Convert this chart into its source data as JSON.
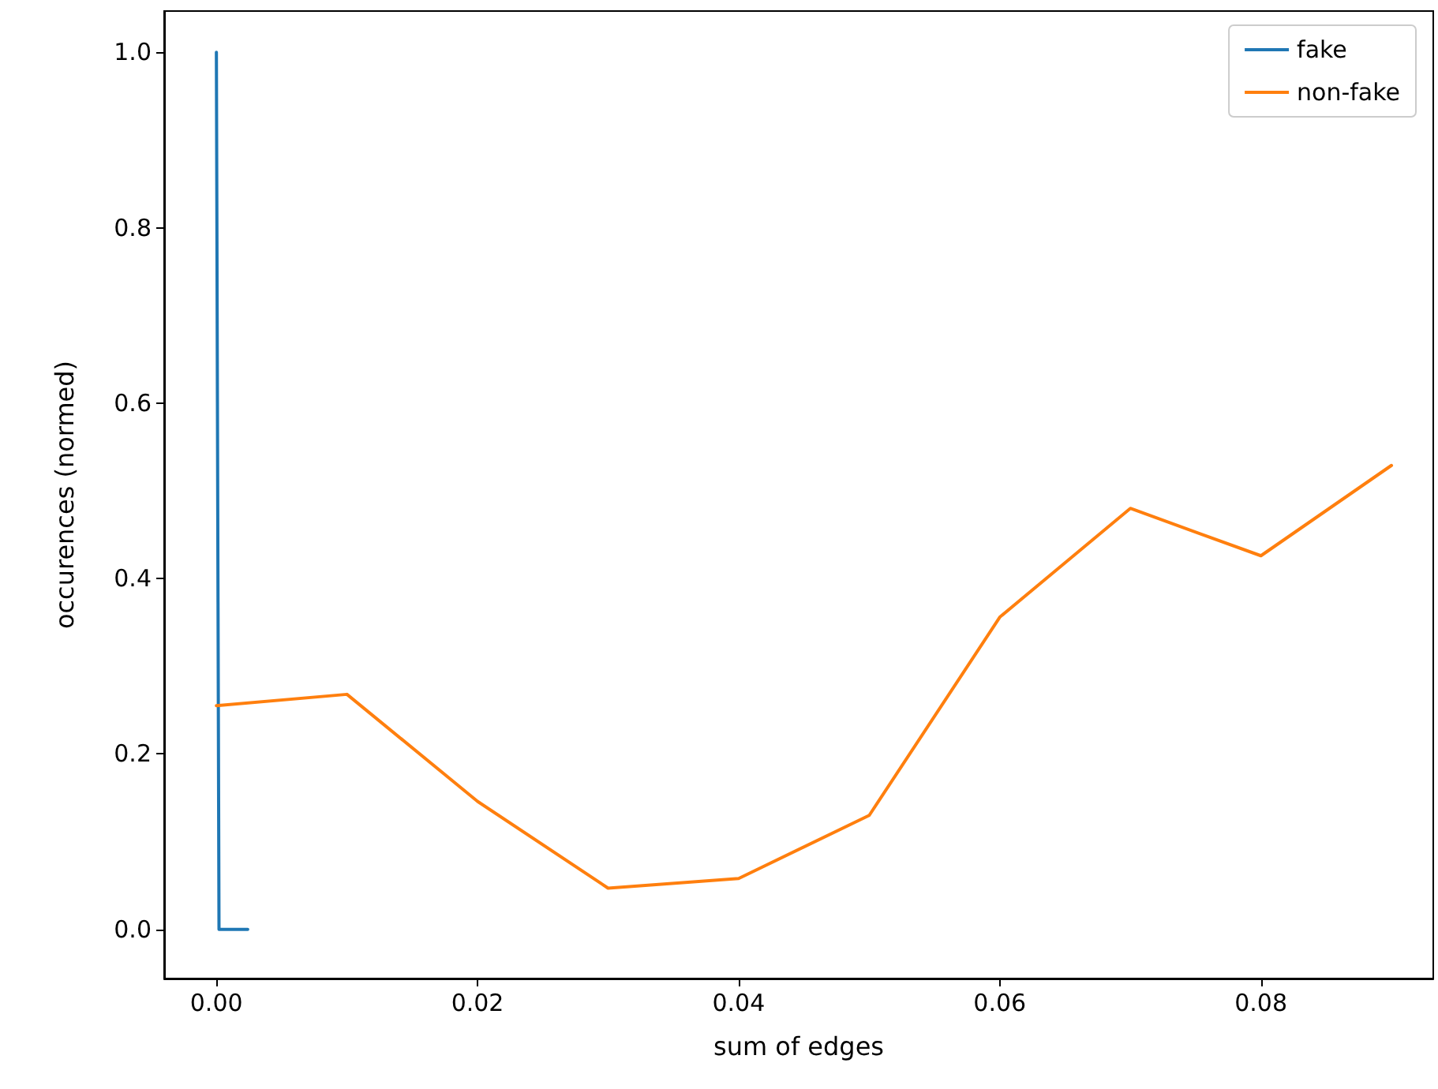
{
  "chart_data": {
    "type": "line",
    "xlabel": "sum of edges",
    "ylabel": "occurences (normed)",
    "series": [
      {
        "name": "fake",
        "color": "#1f77b4",
        "x": [
          0,
          0.0002,
          0.0024
        ],
        "values": [
          1,
          0,
          0
        ]
      },
      {
        "name": "non-fake",
        "color": "#ff7f0e",
        "x": [
          0,
          0.01,
          0.02,
          0.03,
          0.04,
          0.05,
          0.06,
          0.07,
          0.08,
          0.09
        ],
        "values": [
          0.255,
          0.268,
          0.146,
          0.047,
          0.058,
          0.13,
          0.356,
          0.48,
          0.426,
          0.529
        ]
      }
    ],
    "xlim": [
      -0.004,
      0.0932
    ],
    "ylim": [
      -0.056,
      1.047
    ],
    "xticks": [
      {
        "value": 0,
        "label": "0.00"
      },
      {
        "value": 0.02,
        "label": "0.02"
      },
      {
        "value": 0.04,
        "label": "0.04"
      },
      {
        "value": 0.06,
        "label": "0.06"
      },
      {
        "value": 0.08,
        "label": "0.08"
      }
    ],
    "yticks": [
      {
        "value": 0,
        "label": "0.0"
      },
      {
        "value": 0.2,
        "label": "0.2"
      },
      {
        "value": 0.4,
        "label": "0.4"
      },
      {
        "value": 0.6,
        "label": "0.6"
      },
      {
        "value": 0.8,
        "label": "0.8"
      },
      {
        "value": 1,
        "label": "1.0"
      }
    ],
    "legend": "top right",
    "grid": false,
    "marker": "none",
    "line_style": "solid"
  }
}
